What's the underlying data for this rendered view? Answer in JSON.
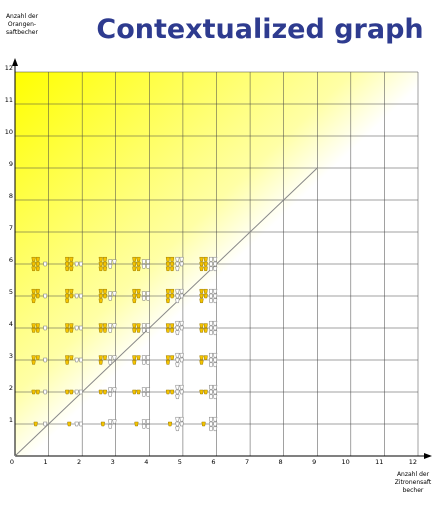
{
  "chart_data": {
    "type": "scatter",
    "title": "Contextualized graph",
    "y_label": [
      "Anzahl der",
      "Orangen-",
      "saftbecher"
    ],
    "x_label": [
      "Anzahl der",
      "Zitronensaft",
      "becher"
    ],
    "xlim": [
      0,
      12
    ],
    "ylim": [
      0,
      12
    ],
    "xticks": [
      0,
      1,
      2,
      3,
      4,
      5,
      6,
      7,
      8,
      9,
      10,
      11,
      12
    ],
    "yticks": [
      1,
      2,
      3,
      4,
      5,
      6,
      7,
      8,
      9,
      10,
      11,
      12
    ],
    "grid": true,
    "background_color": "#ffff00",
    "reference_line": {
      "x": [
        0,
        9
      ],
      "y": [
        0,
        9
      ],
      "color": "#888888"
    },
    "x": [
      1,
      2,
      3,
      4,
      5,
      6,
      1,
      2,
      3,
      4,
      5,
      6,
      1,
      2,
      3,
      4,
      5,
      6,
      1,
      2,
      3,
      4,
      5,
      6,
      1,
      2,
      3,
      4,
      5,
      6,
      1,
      2,
      3,
      4,
      5,
      6
    ],
    "y": [
      1,
      1,
      1,
      1,
      1,
      1,
      2,
      2,
      2,
      2,
      2,
      2,
      3,
      3,
      3,
      3,
      3,
      3,
      4,
      4,
      4,
      4,
      4,
      4,
      5,
      5,
      5,
      5,
      5,
      5,
      6,
      6,
      6,
      6,
      6,
      6
    ],
    "y_color": "#f5c400",
    "x_color": "#ffffff"
  }
}
